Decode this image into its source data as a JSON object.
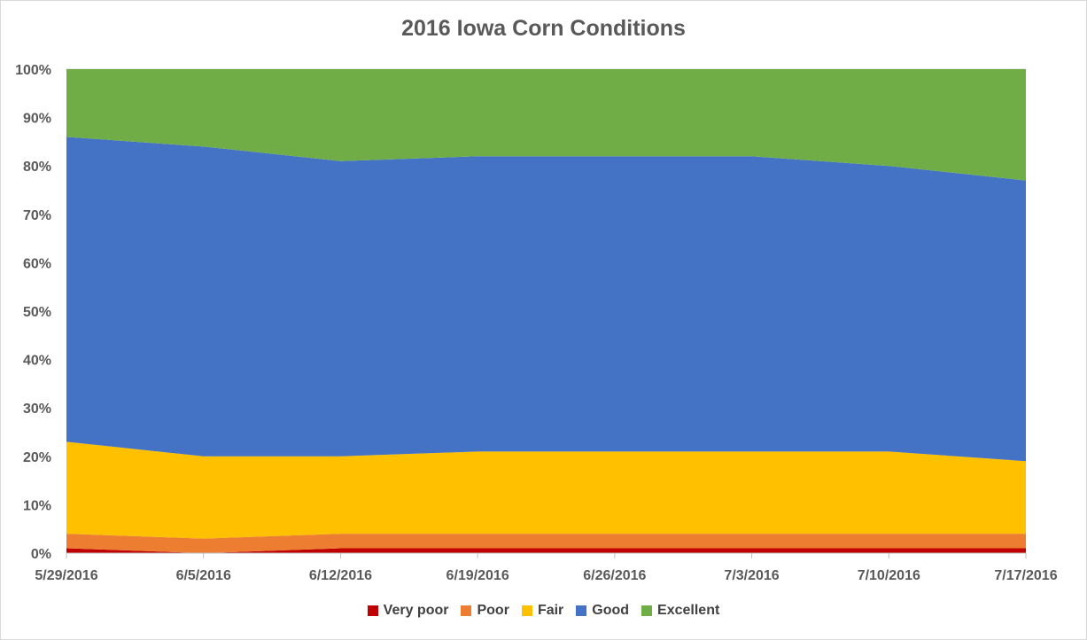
{
  "chart_data": {
    "type": "area",
    "stacked": "percent",
    "title": "2016 Iowa Corn Conditions",
    "xlabel": "",
    "ylabel": "",
    "categories": [
      "5/29/2016",
      "6/5/2016",
      "6/12/2016",
      "6/19/2016",
      "6/26/2016",
      "7/3/2016",
      "7/10/2016",
      "7/17/2016"
    ],
    "yticks": [
      "0%",
      "10%",
      "20%",
      "30%",
      "40%",
      "50%",
      "60%",
      "70%",
      "80%",
      "90%",
      "100%"
    ],
    "ylim": [
      0,
      100
    ],
    "grid": true,
    "legend_position": "bottom",
    "series": [
      {
        "name": "Very poor",
        "color": "#c00000",
        "values": [
          1,
          0,
          1,
          1,
          1,
          1,
          1,
          1
        ]
      },
      {
        "name": "Poor",
        "color": "#ed7d31",
        "values": [
          3,
          3,
          3,
          3,
          3,
          3,
          3,
          3
        ]
      },
      {
        "name": "Fair",
        "color": "#ffc000",
        "values": [
          19,
          17,
          16,
          17,
          17,
          17,
          17,
          15
        ]
      },
      {
        "name": "Good",
        "color": "#4472c4",
        "values": [
          63,
          64,
          61,
          61,
          61,
          61,
          59,
          58
        ]
      },
      {
        "name": "Excellent",
        "color": "#70ad47",
        "values": [
          14,
          16,
          19,
          18,
          18,
          18,
          20,
          23
        ]
      }
    ]
  }
}
